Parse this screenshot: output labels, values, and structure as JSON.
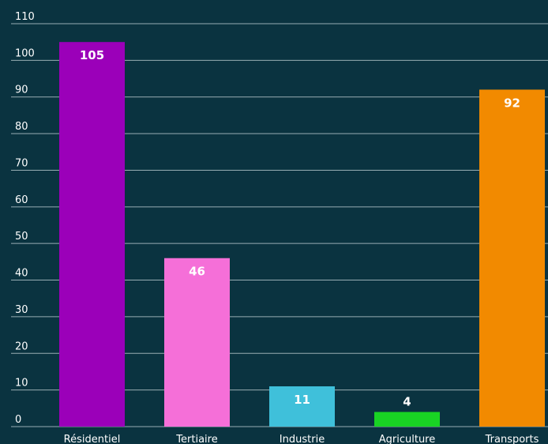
{
  "chart_data": {
    "type": "bar",
    "categories": [
      "Résidentiel",
      "Tertiaire",
      "Industrie",
      "Agriculture",
      "Transports"
    ],
    "values": [
      105,
      46,
      11,
      4,
      92
    ],
    "value_labels": [
      "105",
      "46",
      "11",
      "4",
      "92"
    ],
    "colors": [
      "#9b00b9",
      "#f56fd8",
      "#3fc0da",
      "#19d324",
      "#f28a00"
    ],
    "value_label_colors": [
      "#ffffff",
      "#ffffff",
      "#ffffff",
      "#ffffff",
      "#ffffff"
    ],
    "value_label_position": [
      "inside",
      "inside",
      "inside",
      "above",
      "inside"
    ],
    "y_ticks": [
      "0",
      "10",
      "20",
      "30",
      "40",
      "50",
      "60",
      "70",
      "80",
      "90",
      "100",
      "110"
    ],
    "ylim": [
      0,
      110
    ],
    "grid": true,
    "title": "",
    "xlabel": "",
    "ylabel": ""
  },
  "colors": {
    "background": "#0a3340",
    "gridline": "#c7d6da",
    "text": "#ffffff"
  }
}
